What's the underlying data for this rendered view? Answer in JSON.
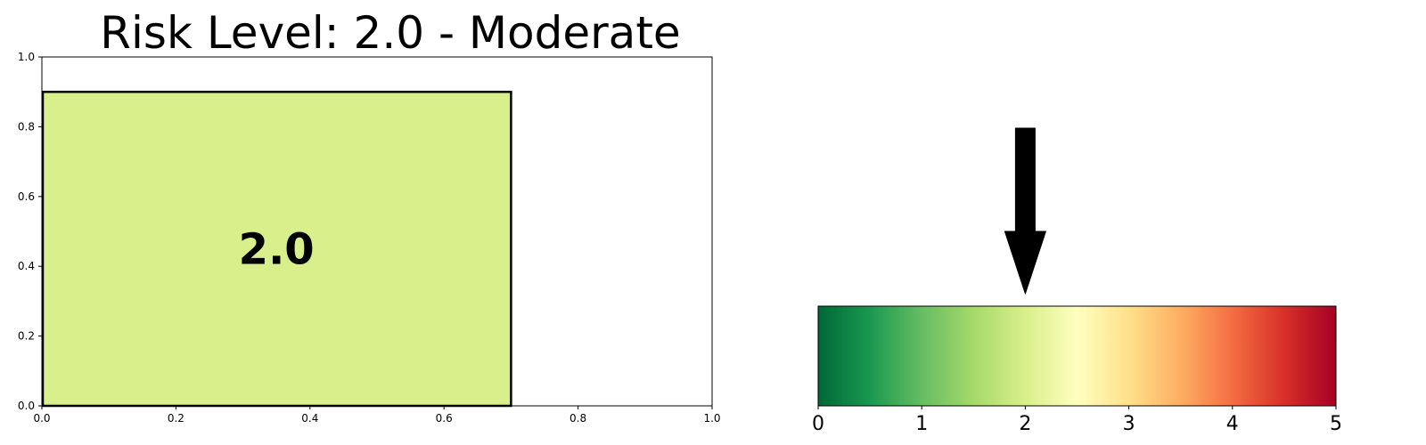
{
  "chart_data": [
    {
      "type": "bar",
      "title": "Risk Level: 2.0 - Moderate",
      "bar": {
        "x0": 0.0,
        "x1": 0.7,
        "y0": 0.0,
        "y1": 0.9,
        "color": "#d9ef8b",
        "edge_color": "#000000"
      },
      "value_label": "2.0",
      "xlim": [
        0,
        1
      ],
      "ylim": [
        0,
        1
      ],
      "xticks": [
        0.0,
        0.2,
        0.4,
        0.6,
        0.8,
        1.0
      ],
      "yticks": [
        0.0,
        0.2,
        0.4,
        0.6,
        0.8,
        1.0
      ],
      "tick_labels_x": [
        "0.0",
        "0.2",
        "0.4",
        "0.6",
        "0.8",
        "1.0"
      ],
      "tick_labels_y": [
        "0.0",
        "0.2",
        "0.4",
        "0.6",
        "0.8",
        "1.0"
      ],
      "xlabel": "",
      "ylabel": "",
      "grid": false
    },
    {
      "type": "heatmap",
      "subtype": "colorbar-gauge",
      "colormap": "RdYlGn_r",
      "colormap_stops": [
        "#006837",
        "#1a9850",
        "#66bd63",
        "#a6d96a",
        "#d9ef8b",
        "#ffffbf",
        "#fee08b",
        "#fdae61",
        "#f46d43",
        "#d73027",
        "#a50026"
      ],
      "xlim": [
        0,
        5
      ],
      "ticks": [
        0,
        1,
        2,
        3,
        4,
        5
      ],
      "tick_labels": [
        "0",
        "1",
        "2",
        "3",
        "4",
        "5"
      ],
      "pointer_value": 2.0,
      "pointer_color": "#000000"
    }
  ]
}
